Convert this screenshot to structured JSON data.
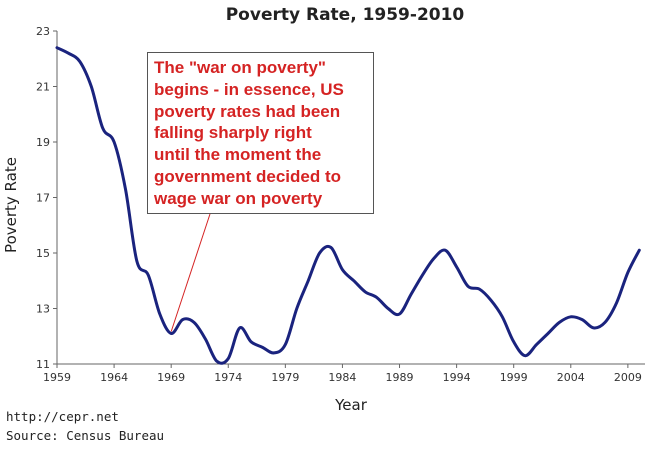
{
  "chart_data": {
    "type": "line",
    "title": "Poverty Rate, 1959-2010",
    "xlabel": "Year",
    "ylabel": "Poverty Rate",
    "xlim": [
      1959,
      2010.5
    ],
    "ylim": [
      11,
      23
    ],
    "x_ticks": [
      "1959",
      "1964",
      "1969",
      "1974",
      "1979",
      "1984",
      "1989",
      "1994",
      "1999",
      "2004",
      "2009"
    ],
    "y_ticks": [
      "11",
      "13",
      "15",
      "17",
      "19",
      "21",
      "23"
    ],
    "grid": false,
    "series": [
      {
        "color": "#1a237e",
        "x": [
          1959,
          1960,
          1961,
          1962,
          1963,
          1964,
          1965,
          1966,
          1967,
          1968,
          1969,
          1970,
          1971,
          1972,
          1973,
          1974,
          1975,
          1976,
          1977,
          1978,
          1979,
          1980,
          1981,
          1982,
          1983,
          1984,
          1985,
          1986,
          1987,
          1988,
          1989,
          1990,
          1991,
          1992,
          1993,
          1994,
          1995,
          1996,
          1997,
          1998,
          1999,
          2000,
          2001,
          2002,
          2003,
          2004,
          2005,
          2006,
          2007,
          2008,
          2009,
          2010
        ],
        "y": [
          22.4,
          22.2,
          21.9,
          21.0,
          19.5,
          19.0,
          17.3,
          14.7,
          14.2,
          12.8,
          12.1,
          12.6,
          12.5,
          11.9,
          11.1,
          11.2,
          12.3,
          11.8,
          11.6,
          11.4,
          11.7,
          13.0,
          14.0,
          15.0,
          15.2,
          14.4,
          14.0,
          13.6,
          13.4,
          13.0,
          12.8,
          13.5,
          14.2,
          14.8,
          15.1,
          14.5,
          13.8,
          13.7,
          13.3,
          12.7,
          11.8,
          11.3,
          11.7,
          12.1,
          12.5,
          12.7,
          12.6,
          12.3,
          12.5,
          13.2,
          14.3,
          15.1
        ]
      }
    ],
    "annotation": {
      "lines": [
        "The \"war on poverty\"",
        "begins - in essence, US",
        "poverty rates had been",
        "falling sharply right",
        "until the moment the",
        "government decided to",
        "wage war on poverty"
      ],
      "points_to": {
        "x": 1969,
        "y": 12.1
      },
      "text_color": "#d52323"
    }
  },
  "footer": {
    "url": "http://cepr.net",
    "source": "Source: Census Bureau"
  }
}
